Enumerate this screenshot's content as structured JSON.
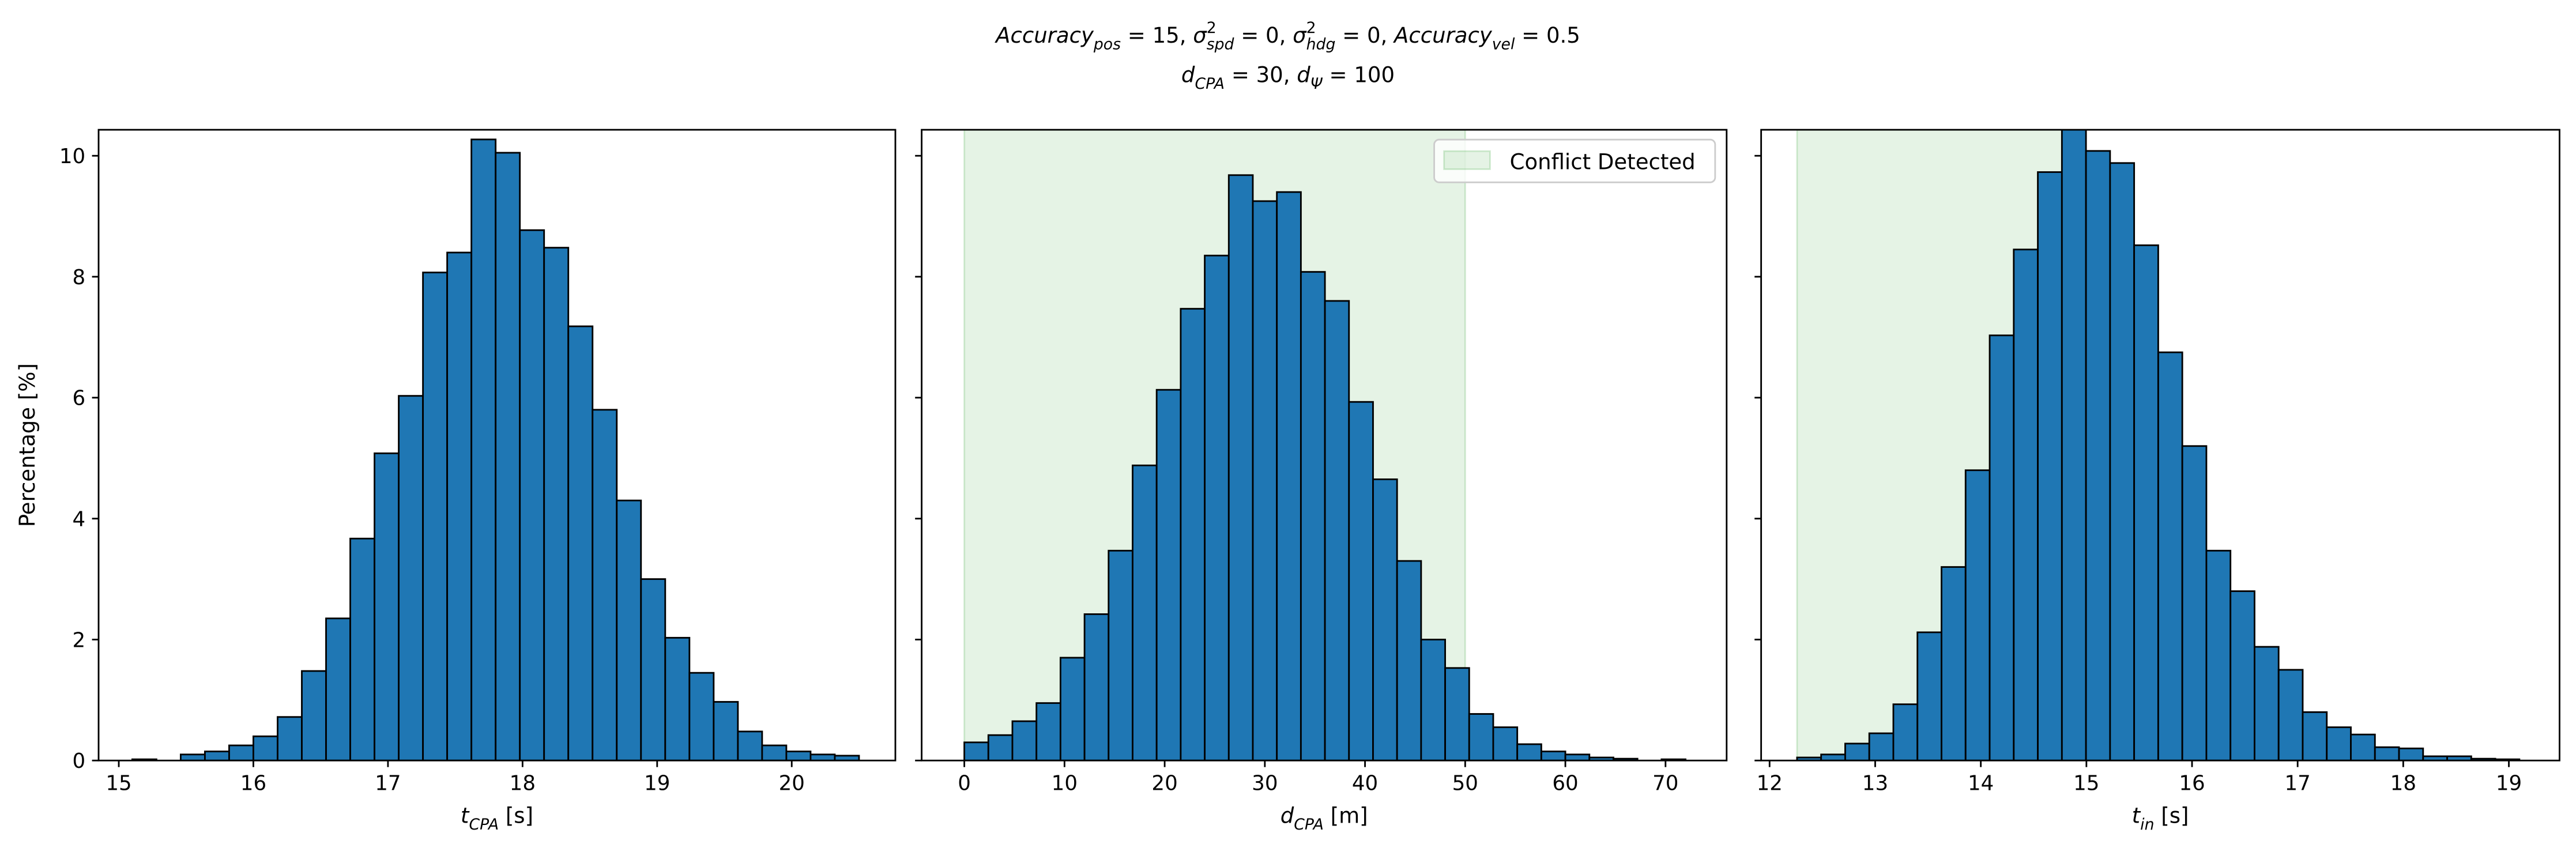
{
  "title_lines": [
    [
      {
        "italic": "Accuracy"
      },
      {
        "sub": "pos"
      },
      {
        "text": " = 15, "
      },
      {
        "italic": "σ"
      },
      {
        "sup": "2"
      },
      {
        "sub": "spd"
      },
      {
        "text": " = 0, "
      },
      {
        "italic": "σ"
      },
      {
        "sup": "2"
      },
      {
        "sub": "hdg"
      },
      {
        "text": " = 0, "
      },
      {
        "italic": "Accuracy"
      },
      {
        "sub": "vel"
      },
      {
        "text": " = 0.5"
      }
    ],
    [
      {
        "italic": "d"
      },
      {
        "sub": "CPA"
      },
      {
        "text": " = 30, "
      },
      {
        "italic": "d"
      },
      {
        "sub": "Ψ"
      },
      {
        "text": " = 100"
      }
    ]
  ],
  "chart_data": [
    {
      "type": "histogram",
      "color": "#1f77b4",
      "edgecolor": "#000000",
      "xlabel": [
        {
          "italic": "t"
        },
        {
          "sub": "CPA"
        },
        {
          "text": " [s]"
        }
      ],
      "ylabel": "Percentage [%]",
      "bins": [
        15.1,
        15.28,
        15.46,
        15.64,
        15.82,
        16,
        16.18,
        16.36,
        16.54,
        16.72,
        16.9,
        17.08,
        17.26,
        17.44,
        17.62,
        17.8,
        17.98,
        18.16,
        18.34,
        18.52,
        18.7,
        18.88,
        19.06,
        19.24,
        19.42,
        19.6,
        19.78,
        19.96,
        20.14,
        20.32,
        20.5
      ],
      "values": [
        0.02,
        0,
        0.1,
        0.15,
        0.25,
        0.4,
        0.72,
        1.48,
        2.35,
        3.67,
        5.08,
        6.03,
        8.07,
        8.4,
        10.27,
        10.05,
        8.77,
        8.48,
        7.18,
        5.8,
        4.3,
        3.0,
        2.03,
        1.45,
        0.97,
        0.48,
        0.25,
        0.15,
        0.1,
        0.08
      ],
      "xlim": [
        14.85,
        20.77
      ],
      "xticks": [
        15,
        16,
        17,
        18,
        19,
        20
      ],
      "ylim": [
        0,
        10.43
      ],
      "yticks": [
        0,
        2,
        4,
        6,
        8,
        10
      ]
    },
    {
      "type": "histogram",
      "color": "#1f77b4",
      "edgecolor": "#000000",
      "xlabel": [
        {
          "italic": "d"
        },
        {
          "sub": "CPA"
        },
        {
          "text": " [m]"
        }
      ],
      "bins": [
        0,
        2.4,
        4.8,
        7.2,
        9.6,
        12,
        14.4,
        16.8,
        19.2,
        21.6,
        24,
        26.4,
        28.8,
        31.2,
        33.6,
        36,
        38.4,
        40.8,
        43.2,
        45.6,
        48,
        50.4,
        52.8,
        55.2,
        57.6,
        60,
        62.4,
        64.8,
        67.2,
        69.6,
        72
      ],
      "values": [
        0.3,
        0.42,
        0.65,
        0.95,
        1.7,
        2.42,
        3.47,
        4.88,
        6.13,
        7.47,
        8.35,
        9.68,
        9.25,
        9.4,
        8.08,
        7.6,
        5.93,
        4.65,
        3.3,
        2.0,
        1.53,
        0.77,
        0.55,
        0.27,
        0.15,
        0.1,
        0.05,
        0.03,
        0,
        0.02
      ],
      "xlim": [
        -4.26,
        76.1
      ],
      "xticks": [
        0,
        10,
        20,
        30,
        40,
        50,
        60,
        70
      ],
      "ylim": [
        0,
        10.43
      ],
      "yticks": [
        0,
        2,
        4,
        6,
        8,
        10
      ],
      "shade": {
        "range": [
          0,
          50
        ],
        "color": "#2ca02c",
        "label": "Conflict Detected"
      },
      "legend": "upper right"
    },
    {
      "type": "histogram",
      "color": "#1f77b4",
      "edgecolor": "#000000",
      "xlabel": [
        {
          "italic": "t"
        },
        {
          "sub": "in"
        },
        {
          "text": " [s]"
        }
      ],
      "bins": [
        12.26,
        12.488,
        12.716,
        12.944,
        13.172,
        13.4,
        13.628,
        13.856,
        14.084,
        14.312,
        14.54,
        14.768,
        14.996,
        15.224,
        15.452,
        15.68,
        15.908,
        16.136,
        16.364,
        16.592,
        16.82,
        17.048,
        17.276,
        17.504,
        17.732,
        17.96,
        18.188,
        18.416,
        18.644,
        18.872,
        19.1
      ],
      "values": [
        0.05,
        0.1,
        0.28,
        0.45,
        0.93,
        2.12,
        3.2,
        4.8,
        7.03,
        8.45,
        9.73,
        10.5,
        10.08,
        9.88,
        8.52,
        6.75,
        5.2,
        3.47,
        2.8,
        1.88,
        1.5,
        0.8,
        0.55,
        0.43,
        0.22,
        0.2,
        0.07,
        0.07,
        0.03,
        0.02
      ],
      "xlim": [
        11.92,
        19.48
      ],
      "xticks": [
        12,
        13,
        14,
        15,
        16,
        17,
        18,
        19
      ],
      "ylim": [
        0,
        10.43
      ],
      "yticks": [
        0,
        2,
        4,
        6,
        8,
        10
      ],
      "shade": {
        "range": [
          12.26,
          14.85
        ],
        "color": "#2ca02c"
      }
    }
  ]
}
